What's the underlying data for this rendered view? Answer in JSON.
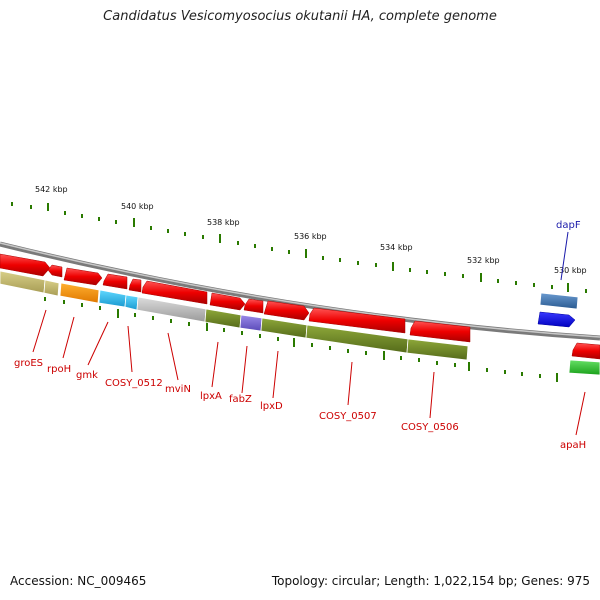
{
  "title": "Candidatus Vesicomyosocius okutanii HA, complete genome",
  "footer": {
    "accession": "Accession: NC_009465",
    "topology": "Topology: circular; Length: 1,022,154 bp; Genes: 975"
  },
  "kbp_ticks": [
    "542 kbp",
    "540 kbp",
    "538 kbp",
    "536 kbp",
    "534 kbp",
    "532 kbp",
    "530 kbp"
  ],
  "gene_labels": {
    "groES": "groES",
    "rpoH": "rpoH",
    "gmk": "gmk",
    "cosy0512": "COSY_0512",
    "mviN": "mviN",
    "lpxA": "lpxA",
    "fabZ": "fabZ",
    "lpxD": "lpxD",
    "cosy0507": "COSY_0507",
    "cosy0506": "COSY_0506",
    "apaH": "apaH",
    "dapF": "dapF"
  },
  "colors": {
    "gene_red": "#ee0000",
    "label_red": "#cc0000",
    "dapF_blue": "#1a1aaa",
    "backbone": "#8a8a8a",
    "tick_green": "#2a7a00"
  }
}
